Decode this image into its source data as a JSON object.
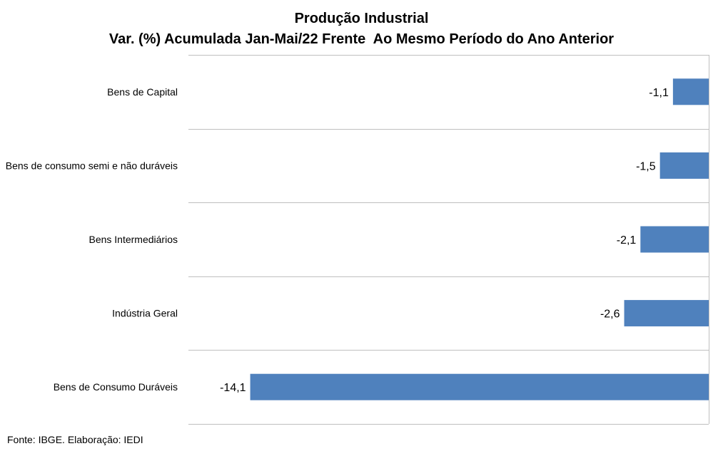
{
  "chart_data": {
    "type": "bar",
    "orientation": "horizontal",
    "title": "Produção Industrial",
    "subtitle": "Var. (%) Acumulada Jan-Mai/22 Frente  Ao Mesmo Período do Ano Anterior",
    "categories": [
      "Bens de Capital",
      "Bens de consumo semi e não duráveis",
      "Bens Intermediários",
      "Indústria Geral",
      "Bens de Consumo Duráveis"
    ],
    "values": [
      -1.1,
      -1.5,
      -2.1,
      -2.6,
      -14.1
    ],
    "data_labels": [
      "-1,1",
      "-1,5",
      "-2,1",
      "-2,6",
      "-14,1"
    ],
    "xlim": [
      -16,
      0
    ],
    "grid": true,
    "legend": "none",
    "bar_color": "#4F81BD",
    "grid_color": "#BFBFBF"
  },
  "footnote": "Fonte: IBGE. Elaboração: IEDI"
}
